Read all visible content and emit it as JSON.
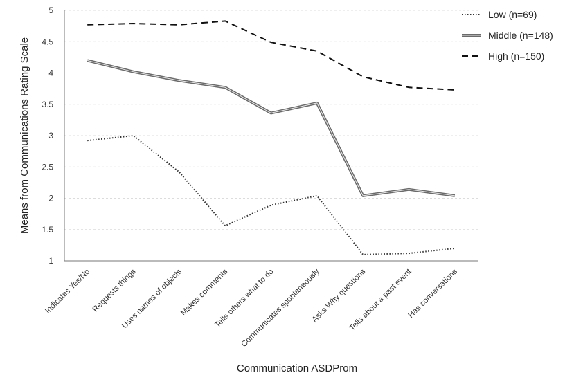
{
  "chart_data": {
    "type": "line",
    "title": "",
    "xlabel": "Communication ASDProm",
    "ylabel": "Means from Communications Rating Scale",
    "ylim": [
      1,
      5
    ],
    "ytick_step": 0.5,
    "grid": "horizontal-dashed",
    "legend_position": "top-right",
    "categories": [
      "Indicates Yes/No",
      "Requests things",
      "Uses names of objects",
      "Makes comments",
      "Tells others what to do",
      "Communicates spontaneously",
      "Asks Why questions",
      "Tells about a past event",
      "Has conversations"
    ],
    "series": [
      {
        "name": "Low (n=69)",
        "style": "dotted",
        "color": "#333333",
        "values": [
          2.92,
          3.0,
          2.42,
          1.56,
          1.89,
          2.04,
          1.1,
          1.12,
          1.2
        ]
      },
      {
        "name": "Middle (n=148)",
        "style": "double",
        "color": "#6b6b6b",
        "values": [
          4.2,
          4.02,
          3.88,
          3.77,
          3.36,
          3.52,
          2.04,
          2.14,
          2.04
        ]
      },
      {
        "name": "High (n=150)",
        "style": "dashed",
        "color": "#111111",
        "values": [
          4.77,
          4.79,
          4.77,
          4.83,
          4.49,
          4.35,
          3.94,
          3.77,
          3.73
        ]
      }
    ]
  }
}
